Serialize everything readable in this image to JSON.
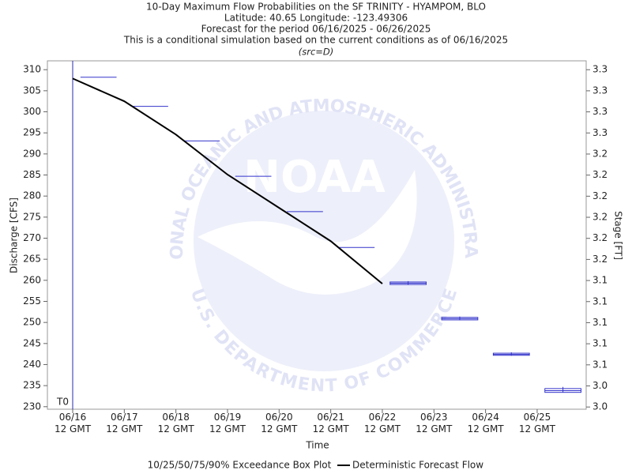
{
  "chart_data": {
    "type": "boxplot",
    "title_lines": [
      "10-Day Maximum Flow Probabilities on the SF TRINITY - HYAMPOM, BLO",
      "Latitude: 40.65 Longitude: -123.49306",
      "Forecast for the period 06/16/2025 - 06/26/2025",
      "This is a conditional simulation based on the current conditions as of 06/16/2025"
    ],
    "subtitle": "(src=D)",
    "xlabel": "Time",
    "ylabel": "Discharge [CFS]",
    "y2label": "Stage [FT]",
    "watermark": {
      "logo": "NOAA",
      "arc_top": "NATIONAL OCEANIC AND ATMOSPHERIC ADMINISTRATION",
      "arc_bottom": "U.S. DEPARTMENT OF COMMERCE"
    },
    "t0": {
      "x": 0,
      "label": "T0",
      "color": "#2b2bb0"
    },
    "xlim": [
      -0.49,
      9.95
    ],
    "xticks": [
      {
        "value": 0,
        "label": [
          "06/16",
          "12 GMT"
        ]
      },
      {
        "value": 1,
        "label": [
          "06/17",
          "12 GMT"
        ]
      },
      {
        "value": 2,
        "label": [
          "06/18",
          "12 GMT"
        ]
      },
      {
        "value": 3,
        "label": [
          "06/19",
          "12 GMT"
        ]
      },
      {
        "value": 4,
        "label": [
          "06/20",
          "12 GMT"
        ]
      },
      {
        "value": 5,
        "label": [
          "06/21",
          "12 GMT"
        ]
      },
      {
        "value": 6,
        "label": [
          "06/22",
          "12 GMT"
        ]
      },
      {
        "value": 7,
        "label": [
          "06/23",
          "12 GMT"
        ]
      },
      {
        "value": 8,
        "label": [
          "06/24",
          "12 GMT"
        ]
      },
      {
        "value": 9,
        "label": [
          "06/25",
          "12 GMT"
        ]
      }
    ],
    "ylim": [
      229.4,
      312.1
    ],
    "yticks": [
      230,
      235,
      240,
      245,
      250,
      255,
      260,
      265,
      270,
      275,
      280,
      285,
      290,
      295,
      300,
      305,
      310
    ],
    "y2lim": [
      3.017,
      3.331
    ],
    "y2ticks": [
      {
        "value": 3.019,
        "label": "3.0"
      },
      {
        "value": 3.038,
        "label": "3.0"
      },
      {
        "value": 3.057,
        "label": "3.1"
      },
      {
        "value": 3.076,
        "label": "3.1"
      },
      {
        "value": 3.095,
        "label": "3.1"
      },
      {
        "value": 3.114,
        "label": "3.1"
      },
      {
        "value": 3.133,
        "label": "3.1"
      },
      {
        "value": 3.152,
        "label": "3.2"
      },
      {
        "value": 3.171,
        "label": "3.2"
      },
      {
        "value": 3.19,
        "label": "3.2"
      },
      {
        "value": 3.209,
        "label": "3.2"
      },
      {
        "value": 3.228,
        "label": "3.2"
      },
      {
        "value": 3.247,
        "label": "3.2"
      },
      {
        "value": 3.266,
        "label": "3.3"
      },
      {
        "value": 3.285,
        "label": "3.3"
      },
      {
        "value": 3.304,
        "label": "3.3"
      },
      {
        "value": 3.323,
        "label": "3.3"
      }
    ],
    "boxes": {
      "name": "10/25/50/75/90% Exceedance Box Plot",
      "color": "#3333cc",
      "width": 0.7,
      "x": [
        0.5,
        1.5,
        2.5,
        3.5,
        4.5,
        5.5,
        6.5,
        7.5,
        8.5,
        9.5
      ],
      "p10": [
        308.2,
        301.3,
        293.1,
        284.7,
        276.3,
        267.8,
        258.9,
        250.5,
        242.1,
        233.4
      ],
      "p25": [
        308.2,
        301.3,
        293.1,
        284.7,
        276.3,
        267.8,
        259.0,
        250.6,
        242.2,
        233.4
      ],
      "p50": [
        308.2,
        301.3,
        293.1,
        284.7,
        276.3,
        267.8,
        259.3,
        250.9,
        242.4,
        233.8
      ],
      "p75": [
        308.2,
        301.3,
        293.1,
        284.7,
        276.3,
        267.8,
        259.6,
        251.2,
        242.7,
        234.3
      ],
      "p90": [
        308.2,
        301.3,
        293.1,
        284.7,
        276.3,
        267.8,
        259.8,
        251.4,
        242.9,
        234.7
      ]
    },
    "series": [
      {
        "name": "Deterministic Forecast Flow",
        "color": "#000000",
        "x": [
          0,
          1,
          2,
          3,
          4,
          5,
          6
        ],
        "values": [
          307.9,
          302.5,
          294.6,
          285.1,
          277.2,
          269.3,
          259.2
        ]
      }
    ]
  }
}
